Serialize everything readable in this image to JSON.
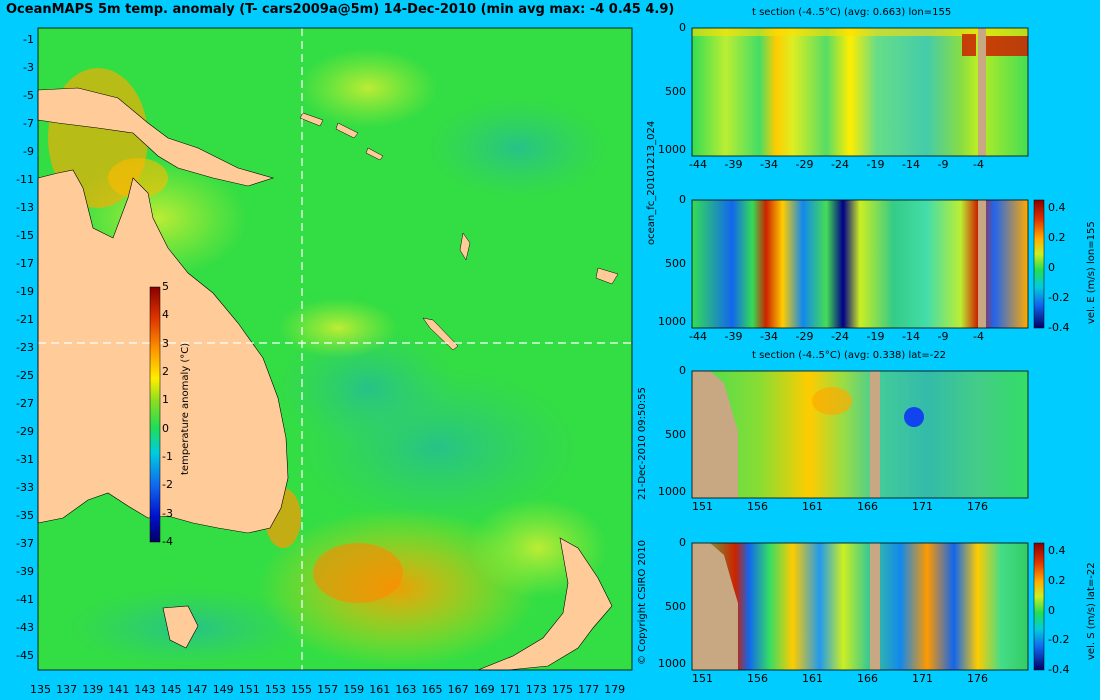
{
  "title": "OceanMAPS 5m temp. anomaly (T- cars2009a@5m) 14-Dec-2010 (min avg max: -4 0.45 4.9)",
  "side_labels": {
    "forecast_id": "ocean_fc_20101213_024",
    "run_time": "21-Dec-2010 09:50:55",
    "copyright": "© Copyright CSIRO 2010"
  },
  "colors": {
    "background": "#00ccff",
    "land": "#ffcc99",
    "section_land": "#c8a882",
    "dashed_line": "#ffffff"
  },
  "chart_data": [
    {
      "type": "heatmap",
      "title": "OceanMAPS 5m temp. anomaly (T- cars2009a@5m) 14-Dec-2010 (min avg max: -4 0.45 4.9)",
      "x_ticks": [
        "135",
        "137",
        "139",
        "141",
        "143",
        "145",
        "147",
        "149",
        "151",
        "153",
        "155",
        "157",
        "159",
        "161",
        "163",
        "165",
        "167",
        "169",
        "171",
        "173",
        "175",
        "177",
        "179"
      ],
      "y_ticks": [
        "-1",
        "-3",
        "-5",
        "-7",
        "-9",
        "-11",
        "-13",
        "-15",
        "-17",
        "-19",
        "-21",
        "-23",
        "-25",
        "-27",
        "-29",
        "-31",
        "-33",
        "-35",
        "-37",
        "-39",
        "-41",
        "-43",
        "-45"
      ],
      "xlim": [
        135,
        180
      ],
      "ylim": [
        -45,
        0
      ],
      "reference_lines": {
        "lon": 155,
        "lat": -22
      },
      "colorbar": {
        "label": "temperature anomaly (°C)",
        "ticks": [
          "5",
          "4",
          "3",
          "2",
          "1",
          "0",
          "-1",
          "-2",
          "-3",
          "-4"
        ],
        "range": [
          -4,
          5
        ]
      },
      "stats": {
        "min": -4,
        "avg": 0.45,
        "max": 4.9
      }
    },
    {
      "type": "heatmap",
      "title": "t section (-4..5°C) (avg: 0.663) lon=155",
      "x_ticks": [
        "-44",
        "-39",
        "-34",
        "-29",
        "-24",
        "-19",
        "-14",
        "-9",
        "-4"
      ],
      "y_ticks": [
        "0",
        "500",
        "1000"
      ],
      "avg": 0.663
    },
    {
      "type": "heatmap",
      "title": "",
      "x_ticks": [
        "-44",
        "-39",
        "-34",
        "-29",
        "-24",
        "-19",
        "-14",
        "-9",
        "-4"
      ],
      "y_ticks": [
        "0",
        "500",
        "1000"
      ],
      "colorbar": {
        "label": "vel. E (m/s) lon=155",
        "ticks": [
          "0.4",
          "0.2",
          "0",
          "-0.2",
          "-0.4"
        ],
        "range": [
          -0.4,
          0.4
        ]
      }
    },
    {
      "type": "heatmap",
      "title": "t section (-4..5°C) (avg: 0.338) lat=-22",
      "x_ticks": [
        "151",
        "156",
        "161",
        "166",
        "171",
        "176"
      ],
      "y_ticks": [
        "0",
        "500",
        "1000"
      ],
      "avg": 0.338
    },
    {
      "type": "heatmap",
      "title": "",
      "x_ticks": [
        "151",
        "156",
        "161",
        "166",
        "171",
        "176"
      ],
      "y_ticks": [
        "0",
        "500",
        "1000"
      ],
      "colorbar": {
        "label": "vel. S (m/s) lat=-22",
        "ticks": [
          "0.4",
          "0.2",
          "0",
          "-0.2",
          "-0.4"
        ],
        "range": [
          -0.4,
          0.4
        ]
      }
    }
  ]
}
